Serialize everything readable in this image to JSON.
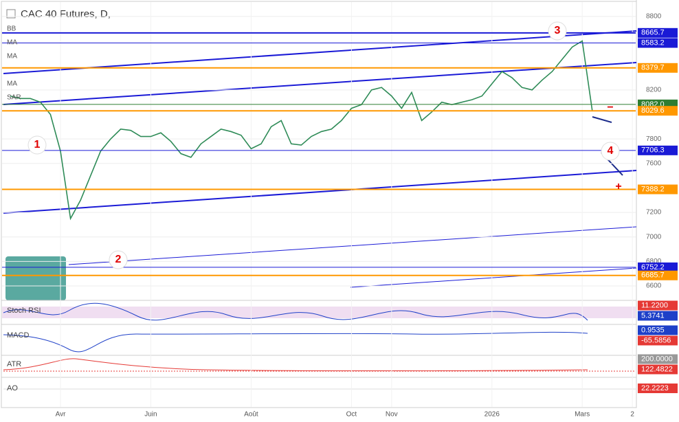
{
  "chart_data": {
    "type": "line",
    "title": "CAC 40 Futures, D,",
    "indicators": [
      "BB",
      "MA",
      "MA",
      "MA",
      "SAR"
    ],
    "categories": [
      null,
      null,
      null,
      null,
      null,
      "Avr",
      null,
      null,
      null,
      null,
      null,
      null,
      null,
      null,
      "Juin",
      null,
      null,
      null,
      null,
      null,
      null,
      null,
      null,
      null,
      "Août",
      null,
      null,
      null,
      null,
      null,
      null,
      null,
      null,
      null,
      "Oct",
      null,
      null,
      null,
      "Nov",
      null,
      null,
      null,
      null,
      null,
      null,
      null,
      null,
      null,
      "2026",
      null,
      null,
      null,
      null,
      null,
      null,
      null,
      null,
      "Mars",
      null,
      null,
      null,
      null,
      "2"
    ],
    "series": [
      {
        "color": "#2e8b57",
        "values": [
          8150,
          8130,
          8130,
          8100,
          8000,
          7700,
          7150,
          7300,
          7500,
          7700,
          7800,
          7880,
          7870,
          7820,
          7820,
          7850,
          7780,
          7680,
          7650,
          7760,
          7820,
          7880,
          7860,
          7830,
          7720,
          7760,
          7900,
          7950,
          7760,
          7750,
          7820,
          7860,
          7880,
          7950,
          8050,
          8080,
          8200,
          8220,
          8150,
          8050,
          8180,
          7950,
          8020,
          8100,
          8080,
          8100,
          8120,
          8150,
          8250,
          8350,
          8300,
          8220,
          8200,
          8280,
          8350,
          8450,
          8550,
          8600,
          8030,
          null,
          null,
          null,
          null
        ]
      }
    ],
    "ylim": [
      6488,
      8934
    ],
    "yticks": [
      6600,
      6800,
      7000,
      7200,
      7600,
      7800,
      8200,
      8800
    ],
    "grid": true,
    "levels": [
      {
        "value": 8665.7,
        "color": "#1a1ad6"
      },
      {
        "value": 8583.2,
        "color": "#1a1ad6"
      },
      {
        "value": 8379.7,
        "color": "#ff9800"
      },
      {
        "value": 8082,
        "label": "8082.0",
        "color": "#2e7d32"
      },
      {
        "value": 8029.6,
        "color": "#ff9800"
      },
      {
        "value": 7706.3,
        "color": "#1a1ad6"
      },
      {
        "value": 7388.2,
        "color": "#ff9800"
      },
      {
        "value": 6752.2,
        "color": "#1a1ad6"
      },
      {
        "value": 6685.7,
        "color": "#ff9800"
      }
    ],
    "annotations": [
      "1",
      "2",
      "3",
      "4",
      "+",
      "−"
    ],
    "panes": [
      {
        "name": "Stoch RSI",
        "readouts": [
          {
            "value": 11.22,
            "label": "11.2200",
            "color": "#e53935"
          },
          {
            "value": 5.3741,
            "label": "5.3741",
            "color": "#1e40c8"
          }
        ]
      },
      {
        "name": "MACD",
        "readouts": [
          {
            "value": 0.9535,
            "label": "0.9535",
            "color": "#1e40c8"
          },
          {
            "value": -65.5856,
            "label": "-65.5856",
            "color": "#e53935"
          }
        ]
      },
      {
        "name": "ATR",
        "readouts": [
          {
            "value": 200,
            "label": "200.0000",
            "color": "#999999"
          },
          {
            "value": 122.4822,
            "label": "122.4822",
            "color": "#e53935"
          }
        ]
      },
      {
        "name": "AO",
        "readouts": [
          {
            "value": 22.2223,
            "label": "22.2223",
            "color": "#e53935"
          }
        ]
      }
    ]
  }
}
